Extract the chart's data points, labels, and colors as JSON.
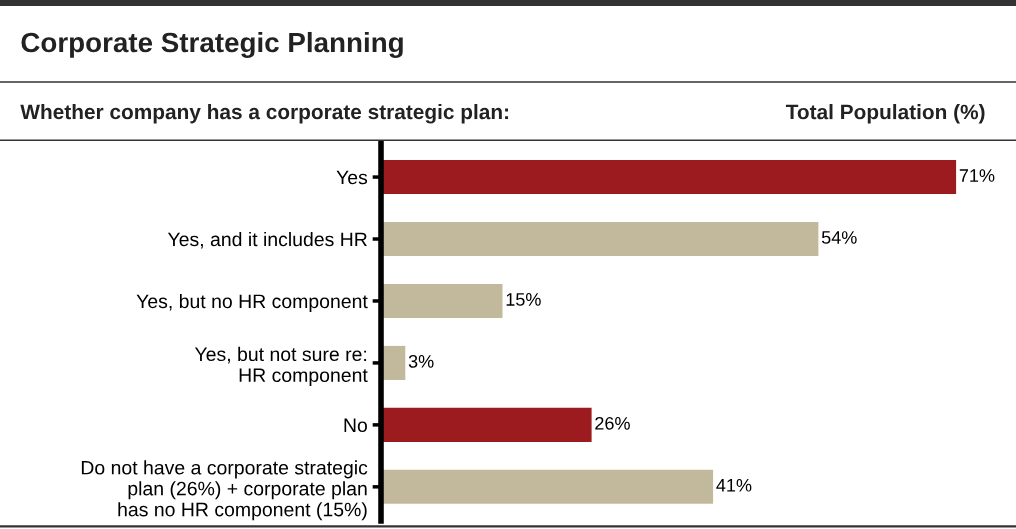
{
  "chart_data": {
    "type": "bar",
    "orientation": "horizontal",
    "title": "Corporate Strategic Planning",
    "subtitle": "Whether company has a corporate strategic plan:",
    "xlabel": "Total Population (%)",
    "categories": [
      "Yes",
      "Yes, and it includes HR",
      "Yes, but no HR component",
      "Yes, but not sure re:\nHR component",
      "No",
      "Do not have a corporate strategic\nplan (26%) + corporate plan\nhas no HR component (15%)"
    ],
    "values": [
      71,
      54,
      15,
      3,
      26,
      41
    ],
    "colors": [
      "#9b1b1f",
      "#c2b89b",
      "#c2b89b",
      "#c2b89b",
      "#9b1b1f",
      "#c2b89b"
    ],
    "value_labels": [
      "71%",
      "54%",
      "15%",
      "3%",
      "26%",
      "41%"
    ],
    "grid": false,
    "legend": false
  }
}
